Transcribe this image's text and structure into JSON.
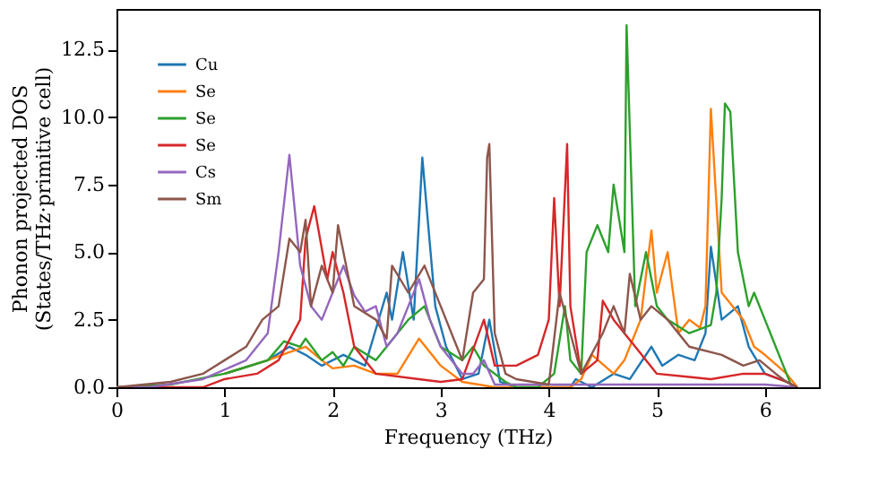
{
  "chart_data": {
    "type": "line",
    "xlabel": "Frequency (THz)",
    "ylabel": "Phonon projected DOS\n(States/THz·primitive cell)",
    "xlim": [
      0,
      6.5
    ],
    "ylim": [
      0,
      14
    ],
    "xticks": [
      0,
      1,
      2,
      3,
      4,
      5,
      6
    ],
    "yticks": [
      {
        "value": 0,
        "label": "0.0"
      },
      2.5,
      {
        "value": 5,
        "label": "5.0"
      },
      7.5,
      {
        "value": 10,
        "label": "10.0"
      },
      12.5
    ],
    "grid": false,
    "legend": "top left",
    "line_style": "solid",
    "marker": "none",
    "series": [
      {
        "name": "Cu",
        "color": "#1f77b4",
        "x": [
          1.0,
          1.4,
          1.6,
          1.75,
          1.9,
          2.1,
          2.3,
          2.5,
          2.55,
          2.65,
          2.75,
          2.83,
          2.95,
          3.05,
          3.2,
          3.35,
          3.45,
          3.55,
          3.7,
          4.2,
          4.25,
          4.4,
          4.6,
          4.75,
          4.95,
          5.05,
          5.2,
          5.35,
          5.45,
          5.5,
          5.6,
          5.75,
          5.85,
          6.0,
          6.2,
          6.3
        ],
        "values": [
          0.5,
          1,
          1.5,
          1.2,
          0.8,
          1.2,
          0.8,
          3.5,
          2.5,
          5,
          2.5,
          8.5,
          3,
          1.5,
          0.3,
          0.5,
          2.5,
          0.2,
          0,
          0,
          0.3,
          0,
          0.5,
          0.3,
          1.5,
          0.8,
          1.2,
          1,
          2,
          5.2,
          2.5,
          3,
          1.5,
          0.5,
          0.2,
          0
        ]
      },
      {
        "name": "Se",
        "color": "#ff7f0e",
        "x": [
          1.0,
          1.4,
          1.6,
          1.75,
          1.9,
          2.0,
          2.2,
          2.4,
          2.6,
          2.8,
          3.0,
          3.2,
          3.5,
          4.2,
          4.3,
          4.4,
          4.6,
          4.7,
          4.85,
          4.95,
          5.0,
          5.1,
          5.2,
          5.3,
          5.4,
          5.45,
          5.5,
          5.6,
          5.7,
          5.8,
          5.9,
          6.0,
          6.2,
          6.3
        ],
        "values": [
          0.5,
          1,
          1.3,
          1.5,
          1.0,
          0.7,
          0.8,
          0.5,
          0.5,
          1.8,
          0.8,
          0.2,
          0,
          0,
          0.3,
          1.2,
          0.5,
          1.0,
          2.5,
          5.8,
          3.5,
          5,
          2,
          2.5,
          2.2,
          3,
          10.3,
          3.5,
          3,
          2.5,
          1.5,
          1.2,
          0.5,
          0
        ]
      },
      {
        "name": "Se",
        "color": "#2ca02c",
        "x": [
          0,
          0.5,
          1.0,
          1.4,
          1.55,
          1.7,
          1.75,
          1.9,
          2.0,
          2.1,
          2.2,
          2.4,
          2.6,
          2.7,
          2.85,
          3.0,
          3.2,
          3.3,
          3.4,
          3.6,
          3.7,
          3.9,
          4.05,
          4.15,
          4.2,
          4.3,
          4.35,
          4.45,
          4.55,
          4.6,
          4.7,
          4.72,
          4.8,
          4.9,
          5.0,
          5.1,
          5.3,
          5.5,
          5.55,
          5.6,
          5.63,
          5.68,
          5.75,
          5.85,
          5.9,
          6.0,
          6.1,
          6.2,
          6.25
        ],
        "values": [
          0,
          0.1,
          0.5,
          1.0,
          1.7,
          1.5,
          1.8,
          1,
          1.3,
          0.8,
          1.5,
          1.0,
          2,
          2.5,
          3,
          1.5,
          1,
          1.5,
          0.8,
          0.2,
          0,
          0,
          0.5,
          3,
          1,
          0.5,
          5,
          6,
          5,
          7.5,
          5,
          13.4,
          3,
          5,
          3,
          2.5,
          2,
          2.3,
          3.5,
          7,
          10.5,
          10.2,
          5,
          3,
          3.5,
          2.5,
          1.5,
          0.5,
          0
        ]
      },
      {
        "name": "Se",
        "color": "#d62728",
        "x": [
          0,
          0.8,
          1.0,
          1.3,
          1.5,
          1.7,
          1.75,
          1.83,
          1.95,
          2.0,
          2.1,
          2.2,
          2.4,
          2.8,
          3.0,
          3.2,
          3.4,
          3.5,
          3.7,
          3.9,
          4.0,
          4.05,
          4.1,
          4.17,
          4.2,
          4.3,
          4.45,
          4.5,
          4.6,
          4.8,
          5.0,
          5.5,
          5.8,
          6.0,
          6.2,
          6.3
        ],
        "values": [
          0,
          0,
          0.3,
          0.5,
          1.0,
          2.5,
          5.5,
          6.7,
          4,
          5,
          3.5,
          1.5,
          0.5,
          0.3,
          0.2,
          0.3,
          2.5,
          0.8,
          0.8,
          1.2,
          2.5,
          7,
          3,
          9,
          3,
          0.5,
          1,
          3.2,
          2.5,
          1.5,
          0.5,
          0.3,
          0.5,
          0.5,
          0.2,
          0
        ]
      },
      {
        "name": "Cs",
        "color": "#9467bd",
        "x": [
          0,
          0.3,
          0.8,
          1.2,
          1.4,
          1.5,
          1.6,
          1.7,
          1.8,
          1.9,
          2.0,
          2.1,
          2.2,
          2.3,
          2.4,
          2.5,
          2.6,
          2.7,
          2.8,
          2.9,
          3.0,
          3.2,
          3.3,
          3.4,
          3.5,
          4.5,
          6.0,
          6.3
        ],
        "values": [
          0,
          0,
          0.3,
          1,
          2,
          5,
          8.6,
          4.5,
          3,
          2.5,
          3.5,
          4.5,
          3.4,
          2.8,
          3,
          1.5,
          2,
          3,
          4,
          2.5,
          1.5,
          0.5,
          0.5,
          1.0,
          0.1,
          0.1,
          0.1,
          0
        ]
      },
      {
        "name": "Sm",
        "color": "#8c564b",
        "x": [
          0,
          0.5,
          0.8,
          1.0,
          1.2,
          1.35,
          1.5,
          1.6,
          1.7,
          1.75,
          1.8,
          1.9,
          2.0,
          2.05,
          2.2,
          2.4,
          2.5,
          2.55,
          2.7,
          2.85,
          3.0,
          3.2,
          3.3,
          3.4,
          3.43,
          3.45,
          3.5,
          3.6,
          3.7,
          4.0,
          4.1,
          4.2,
          4.3,
          4.5,
          4.6,
          4.7,
          4.75,
          4.85,
          4.95,
          5.1,
          5.3,
          5.6,
          5.8,
          5.95,
          6.1,
          6.2,
          6.3
        ],
        "values": [
          0,
          0.2,
          0.5,
          1,
          1.5,
          2.5,
          3,
          5.5,
          5,
          6.2,
          3,
          4.5,
          3.5,
          6,
          3,
          2.5,
          1.8,
          4.5,
          3.5,
          4.5,
          3,
          1,
          3.5,
          4,
          8.5,
          9,
          2,
          0.5,
          0.3,
          0.1,
          3.5,
          2,
          0.5,
          2,
          3,
          2,
          4.2,
          2.5,
          3,
          2.5,
          1.5,
          1.2,
          0.8,
          1,
          0.5,
          0.2,
          0
        ]
      }
    ]
  }
}
